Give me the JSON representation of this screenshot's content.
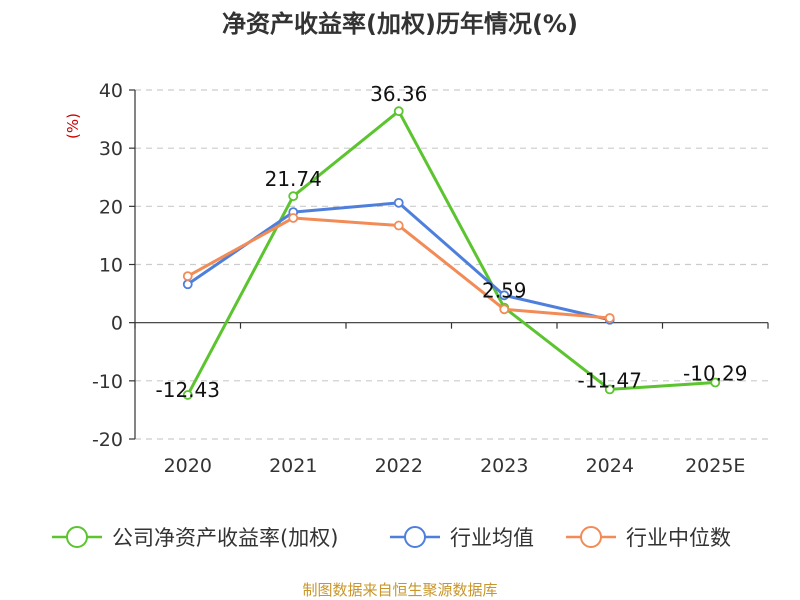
{
  "chart_data": {
    "type": "line",
    "title": "净资产收益率(加权)历年情况(%)",
    "ylabel": "(%)",
    "categories": [
      "2020",
      "2021",
      "2022",
      "2023",
      "2024",
      "2025E"
    ],
    "ylim": [
      -20,
      40
    ],
    "yticks": [
      40,
      30,
      20,
      10,
      0,
      -10,
      -20
    ],
    "ytick_labels": [
      "40",
      "30",
      "20",
      "10",
      "0",
      "-10",
      "-20"
    ],
    "grid": true,
    "legend_position": "bottom",
    "series": [
      {
        "name": "公司净资产收益率(加权)",
        "color": "#5bc42e",
        "values": [
          -12.43,
          21.74,
          36.36,
          2.59,
          -11.47,
          -10.29
        ],
        "labels": [
          "-12.43",
          "21.74",
          "36.36",
          "2.59",
          "-11.47",
          "-10.29"
        ]
      },
      {
        "name": "行业均值",
        "color": "#4f7fdc",
        "values": [
          6.6,
          19.0,
          20.6,
          4.7,
          0.5,
          null
        ]
      },
      {
        "name": "行业中位数",
        "color": "#f28b55",
        "values": [
          8.0,
          18.0,
          16.7,
          2.3,
          0.8,
          null
        ]
      }
    ],
    "source": "制图数据来自恒生聚源数据库"
  }
}
